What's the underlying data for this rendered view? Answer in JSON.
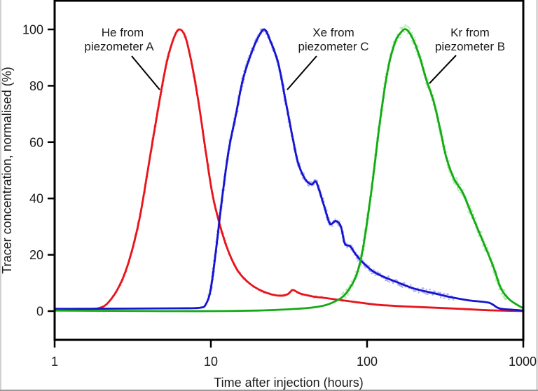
{
  "chart_data": {
    "type": "line",
    "title": "",
    "xlabel": "Time after injection (hours)",
    "ylabel": "Tracer concentration, normalised (%)",
    "xscale": "log",
    "xlim": [
      1,
      1000
    ],
    "ylim": [
      -10,
      110
    ],
    "xticks": [
      1,
      10,
      100,
      1000
    ],
    "xtick_labels": [
      "1",
      "10",
      "100",
      "1000"
    ],
    "yticks": [
      0,
      20,
      40,
      60,
      80,
      100
    ],
    "ytick_labels": [
      "0",
      "20",
      "40",
      "60",
      "80",
      "100"
    ],
    "grid": false,
    "legend": "none",
    "series": [
      {
        "name": "He from piezometer A",
        "label_line1": "He from",
        "label_line2": "piezometer A",
        "color": "#e8141c",
        "scatter_color": "#f4a0a0",
        "x": [
          1.0,
          1.5,
          1.9,
          2.2,
          2.6,
          3.0,
          3.5,
          4.0,
          4.6,
          5.2,
          5.8,
          6.3,
          6.9,
          7.6,
          8.4,
          9.2,
          10.2,
          11.5,
          13.0,
          15.0,
          18.0,
          22.0,
          27.0,
          31.0,
          33.5,
          37.0,
          45.0,
          55.0,
          70.0,
          90.0,
          120.0,
          170.0,
          250.0,
          400.0,
          600.0,
          1000.0
        ],
        "y": [
          0.8,
          0.8,
          1.0,
          3.0,
          9.0,
          18.0,
          33.0,
          52.0,
          72.0,
          88.0,
          97.0,
          100.0,
          97.0,
          87.0,
          73.0,
          58.0,
          42.0,
          30.0,
          21.0,
          14.0,
          9.5,
          6.8,
          5.5,
          6.0,
          7.5,
          6.3,
          5.2,
          4.6,
          3.8,
          3.0,
          2.2,
          1.7,
          1.3,
          0.8,
          0.3,
          0.0
        ]
      },
      {
        "name": "Xe from piezometer C",
        "label_line1": "Xe from",
        "label_line2": "piezometer C",
        "color": "#1414d2",
        "scatter_color": "#a8a8f0",
        "x": [
          1.0,
          3.0,
          6.0,
          8.5,
          9.3,
          10.0,
          10.8,
          11.8,
          13.0,
          14.5,
          16.0,
          18.0,
          20.0,
          22.0,
          24.0,
          27.0,
          30.0,
          33.0,
          36.0,
          40.0,
          44.0,
          47.0,
          50.0,
          54.0,
          58.0,
          63.0,
          68.0,
          72.0,
          78.0,
          85.0,
          95.0,
          110.0,
          130.0,
          160.0,
          200.0,
          260.0,
          340.0,
          450.0,
          600.0,
          700.0,
          850.0,
          1000.0
        ],
        "y": [
          0.8,
          0.9,
          1.0,
          1.2,
          2.5,
          8.0,
          22.0,
          40.0,
          57.0,
          70.0,
          82.0,
          91.0,
          97.0,
          100.0,
          96.0,
          88.0,
          75.0,
          63.0,
          53.0,
          47.0,
          45.0,
          46.0,
          42.0,
          36.0,
          31.0,
          32.0,
          30.0,
          24.0,
          23.0,
          20.0,
          17.0,
          14.0,
          12.0,
          10.0,
          8.0,
          6.5,
          5.0,
          3.8,
          3.0,
          1.0,
          0.5,
          0.2
        ]
      },
      {
        "name": "Kr from piezometer B",
        "label_line1": "Kr from",
        "label_line2": "piezometer B",
        "color": "#14aa14",
        "scatter_color": "#a8e8a8",
        "x": [
          1.0,
          5.0,
          10.0,
          20.0,
          30.0,
          45.0,
          60.0,
          75.0,
          90.0,
          105.0,
          120.0,
          135.0,
          150.0,
          165.0,
          178.0,
          195.0,
          215.0,
          240.0,
          265.0,
          290.0,
          320.0,
          360.0,
          410.0,
          470.0,
          540.0,
          610.0,
          660.0,
          720.0,
          820.0,
          1000.0
        ],
        "y": [
          0.2,
          0.0,
          0.0,
          0.2,
          0.6,
          1.3,
          3.0,
          7.0,
          17.0,
          40.0,
          66.0,
          85.0,
          95.0,
          99.0,
          100.0,
          97.0,
          91.0,
          82.0,
          75.0,
          66.0,
          55.0,
          47.0,
          42.0,
          34.0,
          26.0,
          19.0,
          14.0,
          8.0,
          4.0,
          1.0
        ]
      }
    ]
  }
}
